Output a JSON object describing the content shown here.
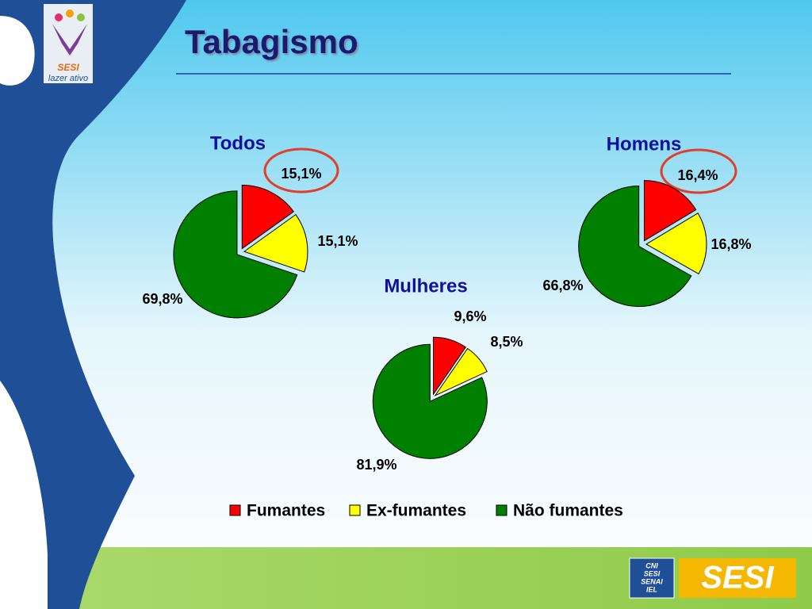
{
  "title": "Tabagismo",
  "logo": {
    "name": "SESI",
    "tagline": "lazer ativo"
  },
  "footer_logo": {
    "institutions": [
      "CNI",
      "SESI",
      "SENAI",
      "IEL"
    ],
    "name": "SESI"
  },
  "chart_data": [
    {
      "type": "pie",
      "title": "Todos",
      "categories": [
        "Fumantes",
        "Ex-fumantes",
        "Não fumantes"
      ],
      "values": [
        15.1,
        15.1,
        69.8
      ],
      "value_labels": [
        "15,1%",
        "15,1%",
        "69,8%"
      ],
      "colors": [
        "#ff0000",
        "#ffff00",
        "#008000"
      ],
      "legend": "bottom"
    },
    {
      "type": "pie",
      "title": "Homens",
      "categories": [
        "Fumantes",
        "Ex-fumantes",
        "Não fumantes"
      ],
      "values": [
        16.4,
        16.8,
        66.8
      ],
      "value_labels": [
        "16,4%",
        "16,8%",
        "66,8%"
      ],
      "colors": [
        "#ff0000",
        "#ffff00",
        "#008000"
      ],
      "legend": "bottom"
    },
    {
      "type": "pie",
      "title": "Mulheres",
      "categories": [
        "Fumantes",
        "Ex-fumantes",
        "Não fumantes"
      ],
      "values": [
        9.6,
        8.5,
        81.9
      ],
      "value_labels": [
        "9,6%",
        "8,5%",
        "81,9%"
      ],
      "colors": [
        "#ff0000",
        "#ffff00",
        "#008000"
      ],
      "legend": "bottom"
    }
  ]
}
